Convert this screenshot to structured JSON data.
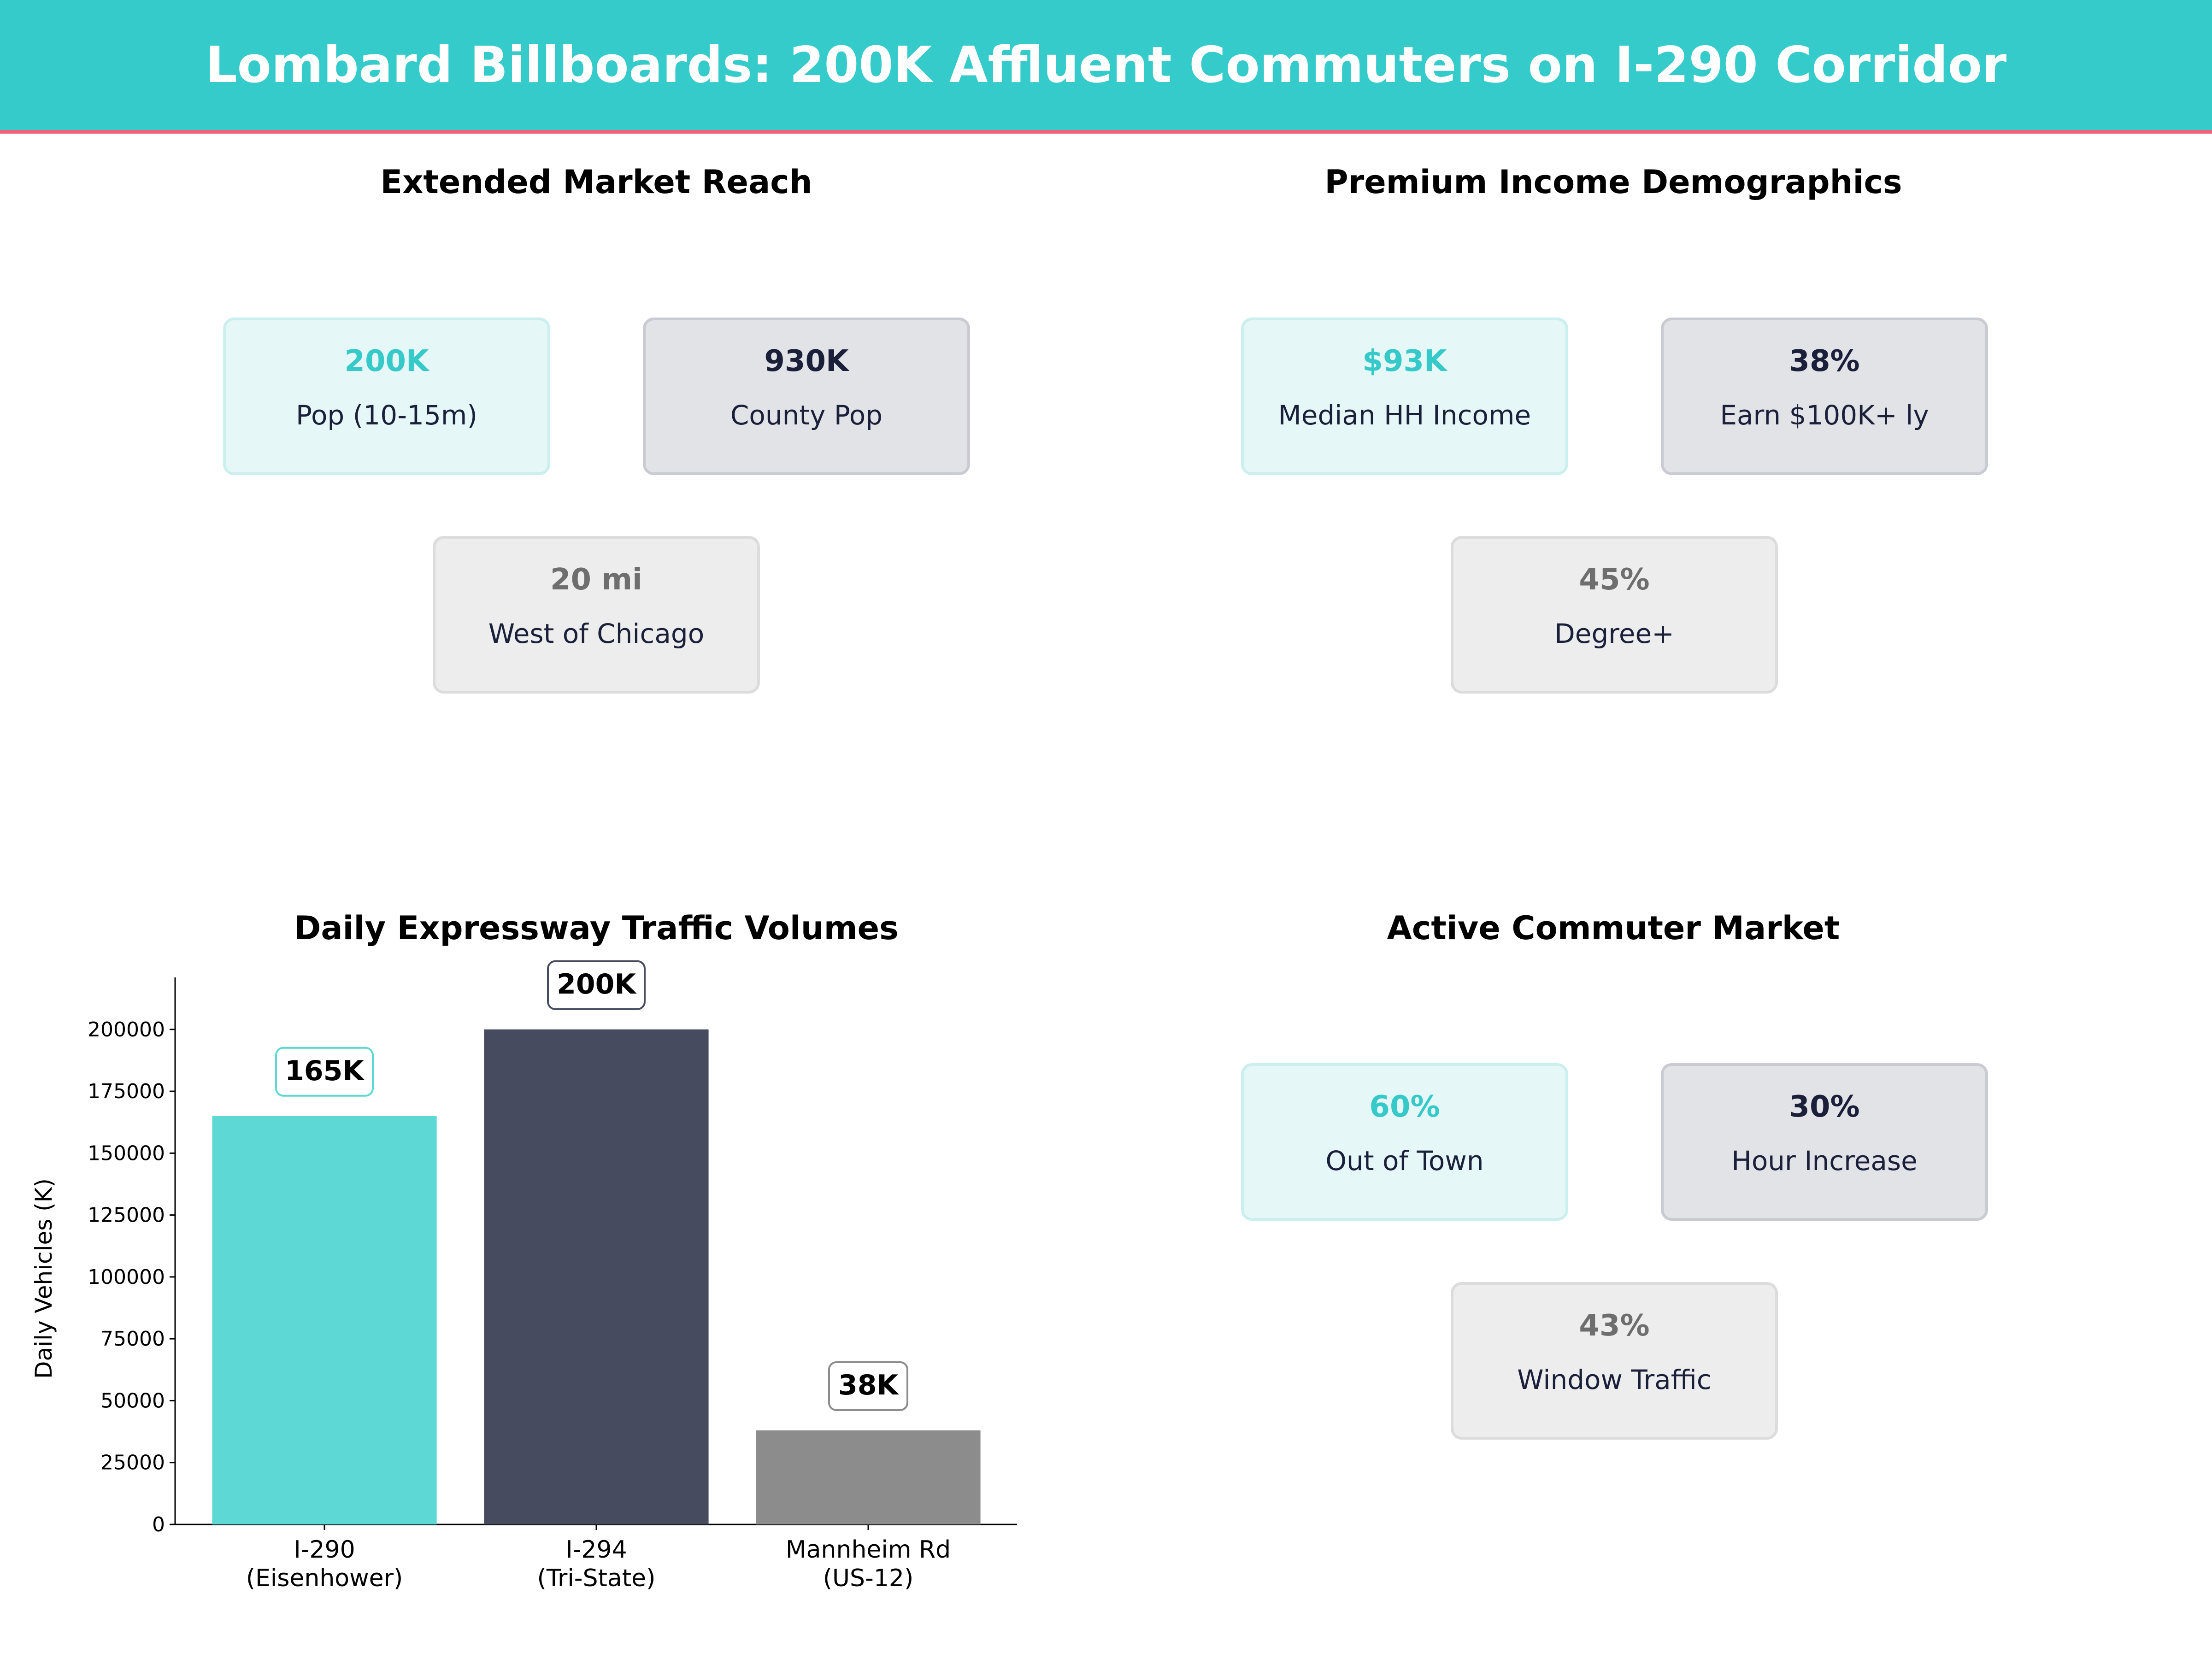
{
  "header": {
    "title": "Lombard Billboards: 200K Affluent Commuters on I-290 Corridor"
  },
  "colors": {
    "header_bg": "#36CBCB",
    "header_accent": "#F0627A",
    "teal": "#36C9C9",
    "navy": "#1A1F3A",
    "gray": "#6E6E6E"
  },
  "panels": [
    {
      "title": "Extended Market Reach",
      "cards": [
        {
          "value": "200K",
          "label": "Pop (10-15m)"
        },
        {
          "value": "930K",
          "label": "County Pop"
        },
        {
          "value": "20 mi",
          "label": "West of Chicago"
        }
      ]
    },
    {
      "title": "Premium Income Demographics",
      "cards": [
        {
          "value": "$93K",
          "label": "Median HH Income"
        },
        {
          "value": "38%",
          "label": "Earn $100K+ ly"
        },
        {
          "value": "45%",
          "label": "Degree+"
        }
      ]
    },
    {
      "title": "Active Commuter Market",
      "cards": [
        {
          "value": "60%",
          "label": "Out of Town"
        },
        {
          "value": "30%",
          "label": "Hour Increase"
        },
        {
          "value": "43%",
          "label": "Window Traffic"
        }
      ]
    }
  ],
  "chart_data": {
    "type": "bar",
    "title": "Daily Expressway Traffic Volumes",
    "xlabel": "",
    "ylabel": "Daily Vehicles (K)",
    "categories": [
      [
        "I-290",
        "(Eisenhower)"
      ],
      [
        "I-294",
        "(Tri-State)"
      ],
      [
        "Mannheim Rd",
        "(US-12)"
      ]
    ],
    "values": [
      165000,
      200000,
      38000
    ],
    "data_labels": [
      "165K",
      "200K",
      "38K"
    ],
    "bar_colors": [
      "#5DD8D4",
      "#464B60",
      "#8C8C8C"
    ],
    "label_border_colors": [
      "#5DD8D4",
      "#464B60",
      "#8C8C8C"
    ],
    "ylim": [
      0,
      221000
    ],
    "yticks": [
      0,
      25000,
      50000,
      75000,
      100000,
      125000,
      150000,
      175000,
      200000
    ],
    "grid": false
  }
}
